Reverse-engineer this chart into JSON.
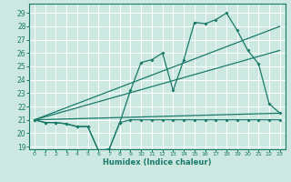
{
  "title": "",
  "xlabel": "Humidex (Indice chaleur)",
  "bg_color": "#cce8e0",
  "grid_color": "#ffffff",
  "line_color": "#1a7a6a",
  "xlim": [
    -0.5,
    23.5
  ],
  "ylim": [
    18.8,
    29.7
  ],
  "yticks": [
    19,
    20,
    21,
    22,
    23,
    24,
    25,
    26,
    27,
    28,
    29
  ],
  "xticks": [
    0,
    1,
    2,
    3,
    4,
    5,
    6,
    7,
    8,
    9,
    10,
    11,
    12,
    13,
    14,
    15,
    16,
    17,
    18,
    19,
    20,
    21,
    22,
    23
  ],
  "curve_x": [
    0,
    1,
    2,
    3,
    4,
    5,
    6,
    7,
    8,
    9,
    10,
    11,
    12,
    13,
    14,
    15,
    16,
    17,
    18,
    19,
    20,
    21,
    22,
    23
  ],
  "curve_min_y": [
    21.0,
    20.8,
    20.8,
    20.7,
    20.5,
    20.5,
    18.7,
    18.8,
    20.8,
    21.0,
    21.0,
    21.0,
    21.0,
    21.0,
    21.0,
    21.0,
    21.0,
    21.0,
    21.0,
    21.0,
    21.0,
    21.0,
    21.0,
    21.0
  ],
  "curve_max_y": [
    21.0,
    20.8,
    20.8,
    20.7,
    20.5,
    20.5,
    18.7,
    18.8,
    20.8,
    23.2,
    25.3,
    25.5,
    26.0,
    23.2,
    25.5,
    28.3,
    28.2,
    28.5,
    29.0,
    27.7,
    26.2,
    25.2,
    22.2,
    21.5
  ],
  "trend1_x": [
    0,
    23
  ],
  "trend1_y": [
    21.0,
    21.5
  ],
  "trend2_x": [
    0,
    23
  ],
  "trend2_y": [
    21.0,
    26.2
  ],
  "trend3_x": [
    0,
    23
  ],
  "trend3_y": [
    21.0,
    28.0
  ]
}
